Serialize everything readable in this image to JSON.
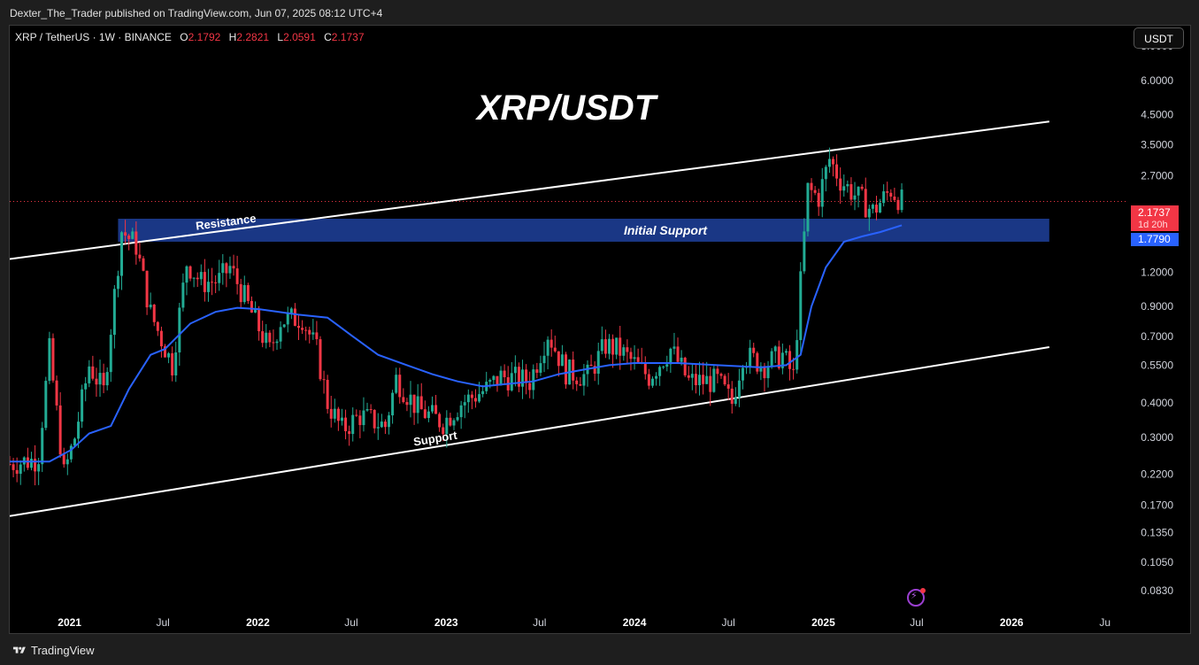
{
  "header": {
    "publisher": "Dexter_The_Trader published on TradingView.com, Jun 07, 2025 08:12 UTC+4"
  },
  "legend": {
    "symbol": "XRP / TetherUS · 1W · BINANCE",
    "o_label": "O",
    "o_value": "2.1792",
    "h_label": "H",
    "h_value": "2.2821",
    "l_label": "L",
    "l_value": "2.0591",
    "c_label": "C",
    "c_value": "2.1737"
  },
  "currency_button": "USDT",
  "price_tags": {
    "last_price": "2.1737",
    "countdown": "1d 20h",
    "ma_value": "1.7790"
  },
  "footer": {
    "brand": "TradingView"
  },
  "colors": {
    "up": "#22ab94",
    "down": "#f23645",
    "ma": "#2962ff",
    "zone": "#1b3a8c",
    "lines": "#ffffff",
    "background": "#000000"
  },
  "chart_data": {
    "type": "candlestick",
    "title": "XRP/USDT",
    "scale": "log",
    "ylim": [
      0.072,
      9.5
    ],
    "y_ticks": [
      "8.0000",
      "6.0000",
      "4.5000",
      "3.5000",
      "2.7000",
      "1.6000",
      "1.2000",
      "0.9000",
      "0.7000",
      "0.5500",
      "0.4000",
      "0.3000",
      "0.2200",
      "0.1700",
      "0.1350",
      "0.1050",
      "0.0830"
    ],
    "x_ticks": [
      "2021",
      "Jul",
      "2022",
      "Jul",
      "2023",
      "Jul",
      "2024",
      "Jul",
      "2025",
      "Jul",
      "2026",
      "Ju"
    ],
    "x_range": [
      "2020-09-07",
      "2026-08-15"
    ],
    "annotations": {
      "resistance_label": "Resistance",
      "support_label": "Support",
      "zone_label": "Initial Support"
    },
    "resistance_line": [
      {
        "x": "2020-09-07",
        "y": 1.34
      },
      {
        "x": "2026-03-15",
        "y": 4.25
      }
    ],
    "support_line": [
      {
        "x": "2020-09-07",
        "y": 0.155
      },
      {
        "x": "2026-03-15",
        "y": 0.64
      }
    ],
    "support_zone": {
      "x_start": "2021-04-05",
      "x_end": "2026-03-15",
      "y_low": 1.55,
      "y_high": 1.88
    },
    "last_price": 2.1737,
    "ma_last": 1.779,
    "price_path": [
      [
        "2020-09-07",
        0.24
      ],
      [
        "2020-11-01",
        0.25
      ],
      [
        "2020-11-23",
        0.62
      ],
      [
        "2020-12-21",
        0.22
      ],
      [
        "2021-01-11",
        0.3
      ],
      [
        "2021-02-08",
        0.55
      ],
      [
        "2021-03-08",
        0.44
      ],
      [
        "2021-04-12",
        1.7
      ],
      [
        "2021-05-10",
        1.5
      ],
      [
        "2021-06-07",
        0.85
      ],
      [
        "2021-07-19",
        0.55
      ],
      [
        "2021-08-16",
        1.3
      ],
      [
        "2021-09-13",
        1.1
      ],
      [
        "2021-10-18",
        1.12
      ],
      [
        "2021-11-08",
        1.25
      ],
      [
        "2021-12-20",
        0.85
      ],
      [
        "2022-01-24",
        0.62
      ],
      [
        "2022-02-14",
        0.8
      ],
      [
        "2022-03-28",
        0.82
      ],
      [
        "2022-04-25",
        0.62
      ],
      [
        "2022-05-16",
        0.4
      ],
      [
        "2022-06-13",
        0.32
      ],
      [
        "2022-07-18",
        0.36
      ],
      [
        "2022-09-05",
        0.33
      ],
      [
        "2022-09-26",
        0.49
      ],
      [
        "2022-11-07",
        0.38
      ],
      [
        "2022-12-26",
        0.34
      ],
      [
        "2023-01-30",
        0.4
      ],
      [
        "2023-03-20",
        0.45
      ],
      [
        "2023-04-17",
        0.5
      ],
      [
        "2023-06-12",
        0.48
      ],
      [
        "2023-07-17",
        0.72
      ],
      [
        "2023-08-21",
        0.52
      ],
      [
        "2023-10-02",
        0.5
      ],
      [
        "2023-11-06",
        0.65
      ],
      [
        "2023-12-04",
        0.62
      ],
      [
        "2024-01-29",
        0.5
      ],
      [
        "2024-03-11",
        0.63
      ],
      [
        "2024-04-15",
        0.48
      ],
      [
        "2024-06-10",
        0.48
      ],
      [
        "2024-07-08",
        0.4
      ],
      [
        "2024-07-29",
        0.6
      ],
      [
        "2024-09-09",
        0.55
      ],
      [
        "2024-10-14",
        0.6
      ],
      [
        "2024-11-04",
        0.5
      ],
      [
        "2024-11-18",
        1.1
      ],
      [
        "2024-12-02",
        2.4
      ],
      [
        "2024-12-23",
        2.25
      ],
      [
        "2025-01-13",
        3.1
      ],
      [
        "2025-02-03",
        2.6
      ],
      [
        "2025-03-03",
        2.3
      ],
      [
        "2025-04-07",
        2.0
      ],
      [
        "2025-05-12",
        2.4
      ],
      [
        "2025-06-02",
        2.17
      ]
    ],
    "ma_path": [
      [
        "2020-09-07",
        0.245
      ],
      [
        "2020-11-23",
        0.245
      ],
      [
        "2021-01-04",
        0.27
      ],
      [
        "2021-02-08",
        0.31
      ],
      [
        "2021-03-22",
        0.33
      ],
      [
        "2021-04-26",
        0.45
      ],
      [
        "2021-06-07",
        0.6
      ],
      [
        "2021-07-05",
        0.63
      ],
      [
        "2021-08-23",
        0.78
      ],
      [
        "2021-10-11",
        0.86
      ],
      [
        "2021-11-22",
        0.89
      ],
      [
        "2022-01-03",
        0.88
      ],
      [
        "2022-03-21",
        0.84
      ],
      [
        "2022-05-16",
        0.82
      ],
      [
        "2022-07-04",
        0.7
      ],
      [
        "2022-08-22",
        0.6
      ],
      [
        "2022-10-17",
        0.55
      ],
      [
        "2022-12-05",
        0.51
      ],
      [
        "2023-01-23",
        0.48
      ],
      [
        "2023-03-13",
        0.46
      ],
      [
        "2023-05-01",
        0.47
      ],
      [
        "2023-06-19",
        0.48
      ],
      [
        "2023-08-07",
        0.51
      ],
      [
        "2023-09-25",
        0.53
      ],
      [
        "2023-11-13",
        0.55
      ],
      [
        "2024-01-01",
        0.56
      ],
      [
        "2024-03-25",
        0.56
      ],
      [
        "2024-06-10",
        0.55
      ],
      [
        "2024-09-02",
        0.54
      ],
      [
        "2024-10-21",
        0.55
      ],
      [
        "2024-11-18",
        0.6
      ],
      [
        "2024-12-09",
        0.9
      ],
      [
        "2025-01-06",
        1.25
      ],
      [
        "2025-02-10",
        1.55
      ],
      [
        "2025-03-17",
        1.62
      ],
      [
        "2025-04-21",
        1.68
      ],
      [
        "2025-06-02",
        1.78
      ]
    ]
  }
}
